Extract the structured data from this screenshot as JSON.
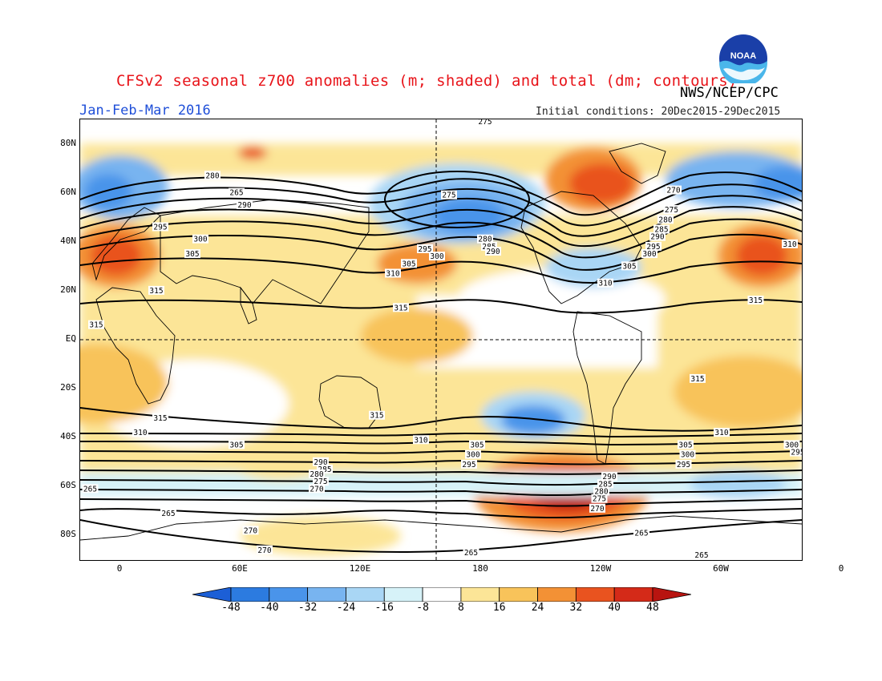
{
  "header": {
    "title": "CFSv2 seasonal z700 anomalies (m; shaded) and total (dm; contours)",
    "agency": "NWS/NCEP/CPC",
    "season": "Jan-Feb-Mar 2016",
    "initial_conditions": "Initial conditions: 20Dec2015-29Dec2015",
    "logo_text": "NOAA"
  },
  "axes": {
    "lat_labels": [
      "80N",
      "60N",
      "40N",
      "20N",
      "EQ",
      "20S",
      "40S",
      "60S",
      "80S"
    ],
    "lon_labels": [
      "0",
      "60E",
      "120E",
      "180",
      "120W",
      "60W",
      "0"
    ]
  },
  "colorbar": {
    "labels": [
      "-48",
      "-40",
      "-32",
      "-24",
      "-16",
      "-8",
      "8",
      "16",
      "24",
      "32",
      "40",
      "48"
    ],
    "colors": [
      "#1c5fd6",
      "#2c7be0",
      "#4a94ea",
      "#78b4f0",
      "#a9d6f5",
      "#d6f2f8",
      "#ffffff",
      "#fce597",
      "#f8c35a",
      "#f39135",
      "#e9531f",
      "#d42a18",
      "#b81410"
    ]
  },
  "map_colors": {
    "land_outline": "#000000",
    "contour": "#000000",
    "grid_dash": "#000000"
  },
  "contour_labels": [
    {
      "text": "275",
      "lon": -178,
      "lat": 89
    },
    {
      "text": "280",
      "lon": 46,
      "lat": 67
    },
    {
      "text": "265",
      "lon": 58,
      "lat": 60
    },
    {
      "text": "290",
      "lon": 62,
      "lat": 55
    },
    {
      "text": "275",
      "lon": 164,
      "lat": 59
    },
    {
      "text": "270",
      "lon": -84,
      "lat": 61
    },
    {
      "text": "275",
      "lon": -85,
      "lat": 53
    },
    {
      "text": "280",
      "lon": -88,
      "lat": 49
    },
    {
      "text": "285",
      "lon": -90,
      "lat": 45
    },
    {
      "text": "290",
      "lon": -92,
      "lat": 42
    },
    {
      "text": "295",
      "lon": -94,
      "lat": 38
    },
    {
      "text": "300",
      "lon": -96,
      "lat": 35
    },
    {
      "text": "305",
      "lon": -106,
      "lat": 30
    },
    {
      "text": "310",
      "lon": -118,
      "lat": 23
    },
    {
      "text": "295",
      "lon": 20,
      "lat": 46
    },
    {
      "text": "300",
      "lon": 40,
      "lat": 41
    },
    {
      "text": "305",
      "lon": 36,
      "lat": 35
    },
    {
      "text": "310",
      "lon": -26,
      "lat": 39
    },
    {
      "text": "280",
      "lon": -178,
      "lat": 41
    },
    {
      "text": "285",
      "lon": -176,
      "lat": 38
    },
    {
      "text": "290",
      "lon": -174,
      "lat": 36
    },
    {
      "text": "295",
      "lon": 152,
      "lat": 37
    },
    {
      "text": "300",
      "lon": 158,
      "lat": 34
    },
    {
      "text": "305",
      "lon": 144,
      "lat": 31
    },
    {
      "text": "310",
      "lon": 136,
      "lat": 27
    },
    {
      "text": "315",
      "lon": 140,
      "lat": 13
    },
    {
      "text": "315",
      "lon": 18,
      "lat": 20
    },
    {
      "text": "315",
      "lon": -12,
      "lat": 6
    },
    {
      "text": "315",
      "lon": -43,
      "lat": 16
    },
    {
      "text": "315",
      "lon": -72,
      "lat": -16
    },
    {
      "text": "315",
      "lon": 20,
      "lat": -32
    },
    {
      "text": "310",
      "lon": 10,
      "lat": -38
    },
    {
      "text": "305",
      "lon": 58,
      "lat": -43
    },
    {
      "text": "300",
      "lon": -25,
      "lat": -43
    },
    {
      "text": "295",
      "lon": -22,
      "lat": -46
    },
    {
      "text": "315",
      "lon": 128,
      "lat": -31
    },
    {
      "text": "310",
      "lon": 150,
      "lat": -41
    },
    {
      "text": "305",
      "lon": 178,
      "lat": -43
    },
    {
      "text": "300",
      "lon": 176,
      "lat": -47
    },
    {
      "text": "295",
      "lon": 174,
      "lat": -51
    },
    {
      "text": "290",
      "lon": 100,
      "lat": -50
    },
    {
      "text": "285",
      "lon": 102,
      "lat": -53
    },
    {
      "text": "280",
      "lon": 98,
      "lat": -55
    },
    {
      "text": "275",
      "lon": 100,
      "lat": -58
    },
    {
      "text": "270",
      "lon": 98,
      "lat": -61
    },
    {
      "text": "310",
      "lon": -60,
      "lat": -38
    },
    {
      "text": "305",
      "lon": -78,
      "lat": -43
    },
    {
      "text": "300",
      "lon": -77,
      "lat": -47
    },
    {
      "text": "295",
      "lon": -79,
      "lat": -51
    },
    {
      "text": "290",
      "lon": -116,
      "lat": -56
    },
    {
      "text": "285",
      "lon": -118,
      "lat": -59
    },
    {
      "text": "280",
      "lon": -120,
      "lat": -62
    },
    {
      "text": "275",
      "lon": -121,
      "lat": -65
    },
    {
      "text": "270",
      "lon": -122,
      "lat": -69
    },
    {
      "text": "265",
      "lon": -100,
      "lat": -79
    },
    {
      "text": "265",
      "lon": -15,
      "lat": -61
    },
    {
      "text": "265",
      "lon": 24,
      "lat": -71
    },
    {
      "text": "270",
      "lon": 65,
      "lat": -78
    },
    {
      "text": "270",
      "lon": 72,
      "lat": -86
    },
    {
      "text": "265",
      "lon": 175,
      "lat": -87
    },
    {
      "text": "265",
      "lon": -70,
      "lat": -88
    }
  ]
}
